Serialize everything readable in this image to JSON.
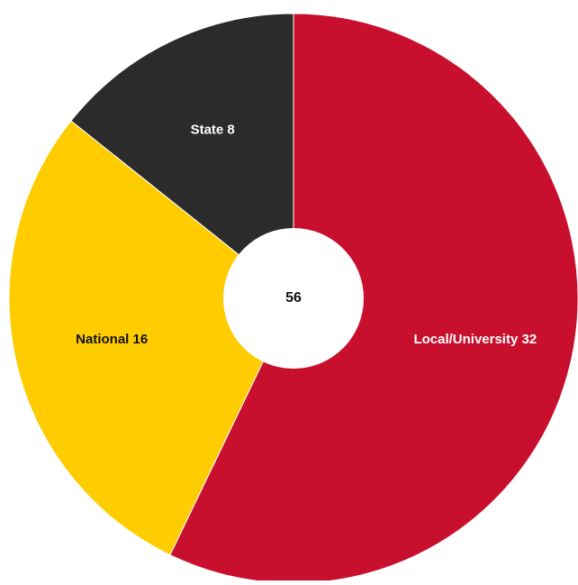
{
  "chart_data": {
    "type": "pie",
    "style": "donut",
    "center_label": "56",
    "slices": [
      {
        "label": "Local/University 32",
        "value": 32,
        "color": "#C8102E",
        "text_color": "#ffffff"
      },
      {
        "label": "National 16",
        "value": 16,
        "color": "#FFCC00",
        "text_color": "#111111"
      },
      {
        "label": "State 8",
        "value": 8,
        "color": "#2B2B2B",
        "text_color": "#ffffff"
      }
    ],
    "start_angle_deg": 0,
    "direction": "clockwise",
    "title": "",
    "legend": "none"
  },
  "colors": {
    "background": "#ffffff",
    "separator": "#ffffff",
    "center_fill": "#ffffff",
    "center_text": "#111111"
  }
}
